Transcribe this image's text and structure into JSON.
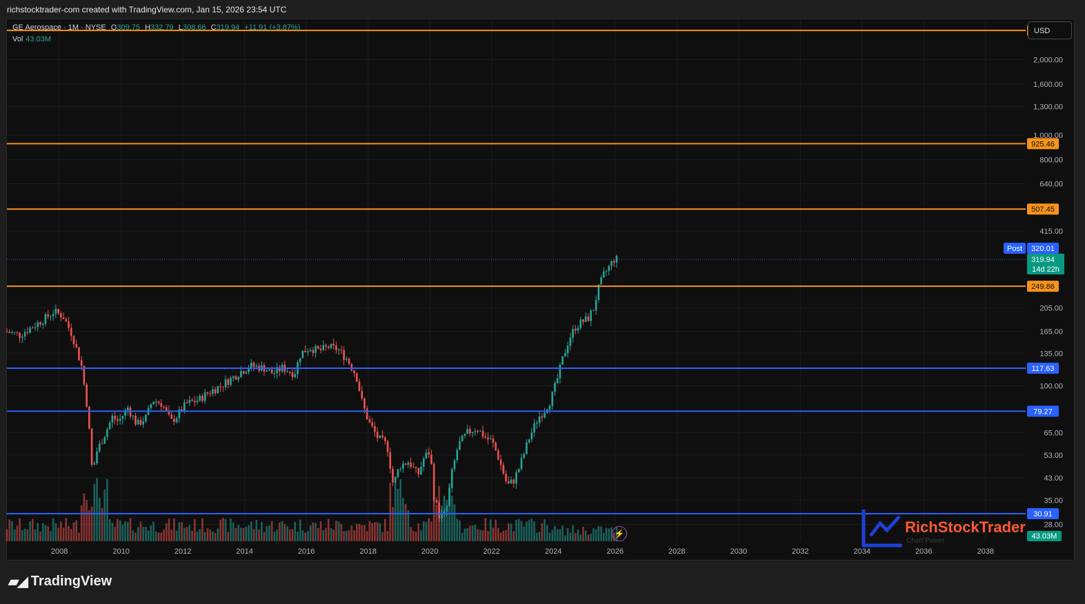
{
  "caption": "richstocktrader-com created with TradingView.com, Jan 15, 2026 23:54 UTC",
  "legend": {
    "symbol": "GE Aerospace · 1M · NYSE",
    "open_label": "O",
    "open": "309.75",
    "high_label": "H",
    "high": "332.79",
    "low_label": "L",
    "low": "308.66",
    "close_label": "C",
    "close": "319.94",
    "change": "+11.91 (+3.87%)",
    "vol_label": "Vol",
    "vol_value": "43.03M"
  },
  "currency_button": "USD",
  "footer_brand": "TradingView",
  "watermark": {
    "name": "RichStockTrader",
    "tagline": "Chart Power"
  },
  "colors": {
    "up": "#26a69a",
    "down": "#ef5350",
    "orange_level": "#f7931a",
    "blue_level": "#2962ff",
    "post": "#2962ff"
  },
  "chart_data": {
    "type": "candlestick",
    "scale": "log",
    "ylim": [
      24,
      2900
    ],
    "xlim": [
      2006.3,
      2039.3
    ],
    "x_ticks": [
      "2008",
      "2010",
      "2012",
      "2014",
      "2016",
      "2018",
      "2020",
      "2022",
      "2024",
      "2026",
      "2028",
      "2030",
      "2032",
      "2034",
      "2036",
      "2038"
    ],
    "y_ticks": [
      {
        "value": 2000,
        "label": "2,000.00"
      },
      {
        "value": 1600,
        "label": "1,600.00"
      },
      {
        "value": 1300,
        "label": "1,300.00"
      },
      {
        "value": 1000,
        "label": "1,000.00"
      },
      {
        "value": 800,
        "label": "800.00"
      },
      {
        "value": 640,
        "label": "640.00"
      },
      {
        "value": 415,
        "label": "415.00"
      },
      {
        "value": 205,
        "label": "205.00"
      },
      {
        "value": 165,
        "label": "165.00"
      },
      {
        "value": 135,
        "label": "135.00"
      },
      {
        "value": 100,
        "label": "100.00"
      },
      {
        "value": 65,
        "label": "65.00"
      },
      {
        "value": 53,
        "label": "53.00"
      },
      {
        "value": 43,
        "label": "43.00"
      },
      {
        "value": 35,
        "label": "35.00"
      },
      {
        "value": 28,
        "label": "28.00"
      }
    ],
    "levels": [
      {
        "value": 2619.24,
        "label": "2,619.24",
        "color": "#f7931a"
      },
      {
        "value": 925.46,
        "label": "925.46",
        "color": "#f7931a"
      },
      {
        "value": 507.45,
        "label": "507.45",
        "color": "#f7931a"
      },
      {
        "value": 249.86,
        "label": "249.86",
        "color": "#f7931a"
      },
      {
        "value": 117.63,
        "label": "117.63",
        "color": "#2962ff"
      },
      {
        "value": 79.27,
        "label": "79.27",
        "color": "#2962ff"
      },
      {
        "value": 30.91,
        "label": "30.91",
        "color": "#2962ff"
      }
    ],
    "post_price": {
      "tag": "Post",
      "value": 320.01,
      "label": "320.01"
    },
    "last_price": {
      "value": 319.94,
      "label": "319.94",
      "countdown": "14d 22h"
    },
    "volume_label": "43.03M",
    "price_path": [
      [
        2006.3,
        165
      ],
      [
        2006.8,
        160
      ],
      [
        2007.2,
        172
      ],
      [
        2007.6,
        185
      ],
      [
        2007.9,
        198
      ],
      [
        2008.2,
        190
      ],
      [
        2008.5,
        160
      ],
      [
        2008.8,
        120
      ],
      [
        2009.0,
        80
      ],
      [
        2009.15,
        45
      ],
      [
        2009.3,
        55
      ],
      [
        2009.5,
        62
      ],
      [
        2009.8,
        75
      ],
      [
        2010.0,
        72
      ],
      [
        2010.3,
        82
      ],
      [
        2010.6,
        70
      ],
      [
        2010.9,
        75
      ],
      [
        2011.1,
        88
      ],
      [
        2011.4,
        85
      ],
      [
        2011.7,
        72
      ],
      [
        2011.9,
        76
      ],
      [
        2012.2,
        85
      ],
      [
        2012.6,
        88
      ],
      [
        2012.9,
        94
      ],
      [
        2013.3,
        100
      ],
      [
        2013.7,
        108
      ],
      [
        2014.0,
        115
      ],
      [
        2014.3,
        120
      ],
      [
        2014.7,
        118
      ],
      [
        2015.0,
        112
      ],
      [
        2015.3,
        118
      ],
      [
        2015.7,
        112
      ],
      [
        2015.9,
        135
      ],
      [
        2016.2,
        142
      ],
      [
        2016.5,
        138
      ],
      [
        2016.8,
        143
      ],
      [
        2017.1,
        140
      ],
      [
        2017.4,
        128
      ],
      [
        2017.7,
        110
      ],
      [
        2017.9,
        85
      ],
      [
        2018.1,
        72
      ],
      [
        2018.4,
        62
      ],
      [
        2018.7,
        58
      ],
      [
        2018.9,
        40
      ],
      [
        2019.1,
        48
      ],
      [
        2019.4,
        50
      ],
      [
        2019.7,
        44
      ],
      [
        2019.9,
        52
      ],
      [
        2020.1,
        55
      ],
      [
        2020.2,
        37
      ],
      [
        2020.4,
        30
      ],
      [
        2020.6,
        31
      ],
      [
        2020.8,
        45
      ],
      [
        2021.0,
        58
      ],
      [
        2021.3,
        65
      ],
      [
        2021.6,
        68
      ],
      [
        2021.9,
        62
      ],
      [
        2022.1,
        60
      ],
      [
        2022.3,
        52
      ],
      [
        2022.6,
        40
      ],
      [
        2022.8,
        42
      ],
      [
        2023.0,
        48
      ],
      [
        2023.3,
        62
      ],
      [
        2023.6,
        75
      ],
      [
        2023.8,
        80
      ],
      [
        2024.0,
        88
      ],
      [
        2024.2,
        105
      ],
      [
        2024.4,
        130
      ],
      [
        2024.6,
        155
      ],
      [
        2024.8,
        172
      ],
      [
        2025.0,
        180
      ],
      [
        2025.2,
        185
      ],
      [
        2025.4,
        205
      ],
      [
        2025.5,
        235
      ],
      [
        2025.7,
        275
      ],
      [
        2025.9,
        300
      ],
      [
        2026.05,
        319.94
      ]
    ]
  }
}
